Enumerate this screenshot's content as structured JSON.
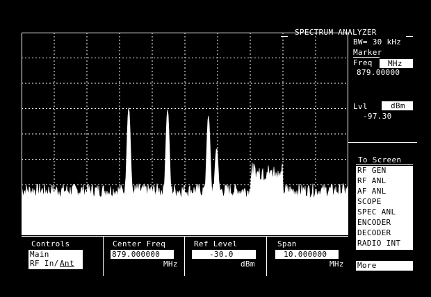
{
  "title": "SPECTRUM ANALYZER",
  "bandwidth": "BW= 30 kHz",
  "marker": {
    "heading": "Marker",
    "freq_label": "Freq",
    "freq_unit": "MHz",
    "freq_value": "879.00000",
    "level_label": "Lvl",
    "level_unit": "dBm",
    "level_value": "-97.30"
  },
  "to_screen": {
    "heading": "To Screen",
    "items": [
      "RF GEN",
      "RF ANL",
      "AF ANL",
      "SCOPE",
      "SPEC ANL",
      "ENCODER",
      "DECODER",
      "RADIO INT"
    ],
    "more": "More"
  },
  "controls": {
    "label": "Controls",
    "options": [
      "Main",
      "RF In/"
    ],
    "underlined_option": "Ant"
  },
  "center_freq": {
    "label": "Center Freq",
    "value": "879.000000",
    "unit": "MHz"
  },
  "ref_level": {
    "label": "Ref Level",
    "value": "-30.0",
    "unit": "dBm"
  },
  "span": {
    "label": "Span",
    "value": "10.000000",
    "unit": "MHz"
  },
  "trace": {
    "peaks": [
      {
        "pos": 0.328,
        "level": 0.52
      },
      {
        "pos": 0.447,
        "level": 0.51
      },
      {
        "pos": 0.572,
        "level": 0.48
      },
      {
        "pos": 0.597,
        "level": 0.32
      }
    ],
    "noise_floor": 0.22,
    "wideband_region": [
      0.7,
      0.8
    ]
  }
}
